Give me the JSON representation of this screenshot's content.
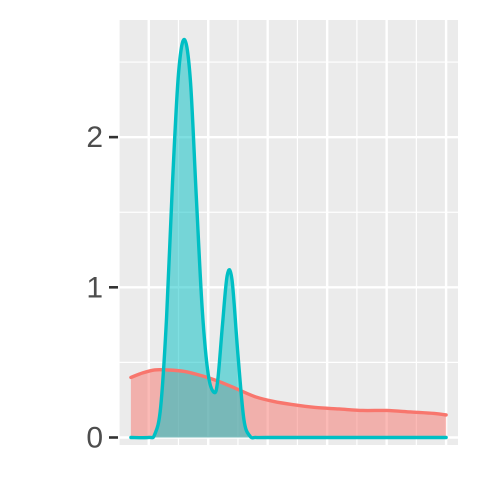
{
  "chart_data": {
    "type": "area",
    "title": "",
    "xlabel": "",
    "ylabel": "",
    "x_ticks_labeled": false,
    "xlim": [
      -0.25,
      2.6
    ],
    "ylim": [
      -0.05,
      2.78
    ],
    "y_ticks": [
      0,
      1,
      2
    ],
    "y_tick_labels": [
      "0",
      "1",
      "2"
    ],
    "grid": true,
    "legend": "none",
    "series": [
      {
        "color": "#F8766D",
        "fill": "#F8766D",
        "fill_opacity": 0.5,
        "x": [
          -0.15,
          -0.05,
          0.05,
          0.15,
          0.3,
          0.45,
          0.6,
          0.75,
          0.9,
          1.05,
          1.2,
          1.4,
          1.6,
          1.8,
          2.0,
          2.2,
          2.4,
          2.5
        ],
        "y": [
          0.4,
          0.43,
          0.45,
          0.45,
          0.44,
          0.41,
          0.37,
          0.32,
          0.27,
          0.24,
          0.22,
          0.2,
          0.19,
          0.18,
          0.18,
          0.17,
          0.16,
          0.15
        ]
      },
      {
        "color": "#00BFC4",
        "fill": "#00BFC4",
        "fill_opacity": 0.5,
        "x": [
          -0.15,
          0.0,
          0.05,
          0.1,
          0.15,
          0.2,
          0.25,
          0.3,
          0.35,
          0.4,
          0.45,
          0.5,
          0.55,
          0.58,
          0.62,
          0.66,
          0.7,
          0.75,
          0.8,
          0.85,
          0.9,
          1.0,
          1.5,
          2.0,
          2.5
        ],
        "y": [
          0.0,
          0.0,
          0.02,
          0.2,
          0.8,
          1.7,
          2.42,
          2.65,
          2.38,
          1.6,
          0.85,
          0.42,
          0.3,
          0.38,
          0.75,
          1.08,
          1.05,
          0.55,
          0.12,
          0.01,
          0.0,
          0.0,
          0.0,
          0.0,
          0.0
        ]
      }
    ]
  }
}
